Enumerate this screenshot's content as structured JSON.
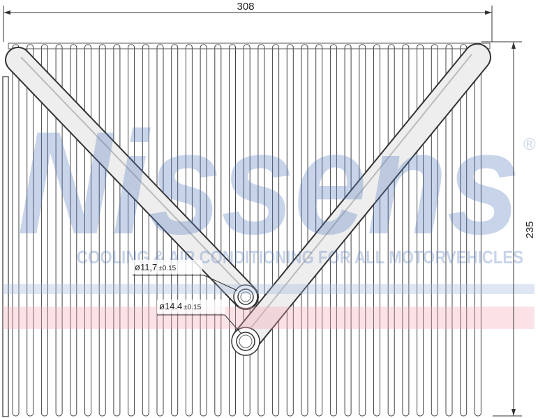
{
  "dimensions": {
    "width": "308",
    "height": "235"
  },
  "callouts": [
    {
      "diameter": "ø11,7",
      "tolerance": "±0.15"
    },
    {
      "diameter": "ø14.4",
      "tolerance": "±0.15"
    }
  ],
  "watermark": {
    "brand": "Nissens",
    "registered": "®",
    "tagline": "COOLING & AIR CONDITIONING FOR ALL MOTORVEHICLES"
  }
}
